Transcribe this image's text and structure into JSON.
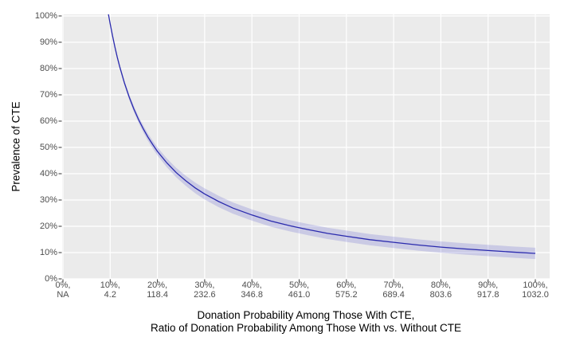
{
  "chart_data": {
    "type": "line",
    "title": "",
    "ylabel": "Prevalence of CTE",
    "xlabel_lines": [
      "Donation Probability Among Those With CTE,",
      "Ratio of Donation Probability Among Those With vs. Without CTE"
    ],
    "panel_bg": "#ebebeb",
    "grid_color": "#ffffff",
    "tick_color": "#333333",
    "tick_label_color": "#4d4d4d",
    "axis_title_color": "#000000",
    "grid": "major-only",
    "legend": "none",
    "y_axis": {
      "tick_labels": [
        "100%",
        "90%",
        "80%",
        "70%",
        "60%",
        "50%",
        "40%",
        "30%",
        "20%",
        "10%",
        "0%"
      ],
      "range_pct": [
        0,
        100
      ]
    },
    "x_axis": {
      "tick_labels_line1": [
        "0%,",
        "10%,",
        "20%,",
        "30%,",
        "40%,",
        "50%,",
        "60%,",
        "70%,",
        "80%,",
        "90%,",
        "100%,"
      ],
      "tick_labels_line2": [
        "NA",
        "4.2",
        "118.4",
        "232.6",
        "346.8",
        "461.0",
        "575.2",
        "689.4",
        "803.6",
        "917.8",
        "1032.0"
      ],
      "range_pct": [
        0,
        100
      ]
    },
    "series": [
      {
        "name": "estimated-prevalence-of-cte",
        "line_color": "#2a2aad",
        "band_fill": "#3c3cc8",
        "band_opacity": 0.185,
        "x_pct": [
          9.6,
          10,
          10.5,
          11,
          11.5,
          12,
          13,
          14,
          15,
          16,
          17,
          18,
          19,
          20,
          22,
          24,
          26,
          28,
          30,
          33,
          36,
          40,
          44,
          48,
          52,
          56,
          60,
          65,
          70,
          75,
          80,
          85,
          90,
          95,
          100
        ],
        "y_pct": [
          101,
          97,
          92.4,
          88.2,
          84.3,
          80.8,
          74.6,
          69.3,
          64.7,
          60.6,
          57.1,
          53.9,
          51.1,
          48.5,
          44.1,
          40.4,
          37.3,
          34.6,
          32.3,
          29.4,
          26.9,
          24.3,
          22.0,
          20.2,
          18.7,
          17.3,
          16.2,
          14.9,
          13.9,
          12.9,
          12.1,
          11.4,
          10.8,
          10.2,
          9.7
        ],
        "band_half_pct": [
          0.25,
          0.39,
          0.51,
          0.61,
          0.69,
          0.77,
          0.9,
          1.02,
          1.12,
          1.21,
          1.31,
          1.38,
          1.46,
          1.53,
          1.68,
          1.8,
          1.92,
          2.03,
          2.13,
          2.15,
          2.15,
          2.15,
          2.15,
          2.15,
          2.15,
          2.15,
          2.15,
          2.15,
          2.15,
          2.15,
          2.15,
          2.15,
          2.15,
          2.15,
          2.15
        ]
      }
    ]
  }
}
